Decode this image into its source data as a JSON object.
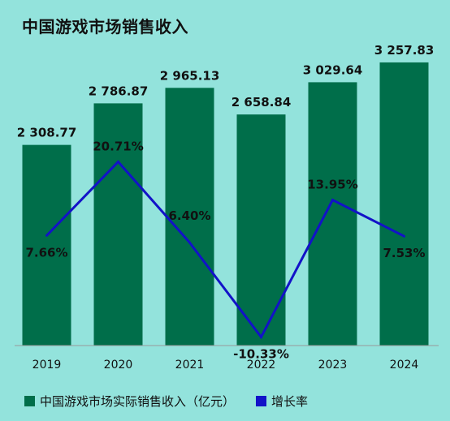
{
  "chart_data": {
    "type": "bar",
    "title": "中国游戏市场销售收入",
    "categories": [
      "2019",
      "2020",
      "2021",
      "2022",
      "2023",
      "2024"
    ],
    "series": [
      {
        "name": "中国游戏市场实际销售收入（亿元）",
        "type": "bar",
        "values": [
          2308.77,
          2786.87,
          2965.13,
          2658.84,
          3029.64,
          3257.83
        ],
        "labels": [
          "2 308.77",
          "2 786.87",
          "2 965.13",
          "2 658.84",
          "3 029.64",
          "3 257.83"
        ],
        "color": "#006e4a"
      },
      {
        "name": "增长率",
        "type": "line",
        "values": [
          7.66,
          20.71,
          6.4,
          -10.33,
          13.95,
          7.53
        ],
        "labels": [
          "7.66%",
          "20.71%",
          "6.40%",
          "-10.33%",
          "13.95%",
          "7.53%"
        ],
        "color": "#1212c8"
      }
    ],
    "ylim_bar": [
      0,
      3500
    ],
    "ylim_line": [
      -15,
      35
    ],
    "grid": false,
    "legend_position": "bottom-left"
  }
}
